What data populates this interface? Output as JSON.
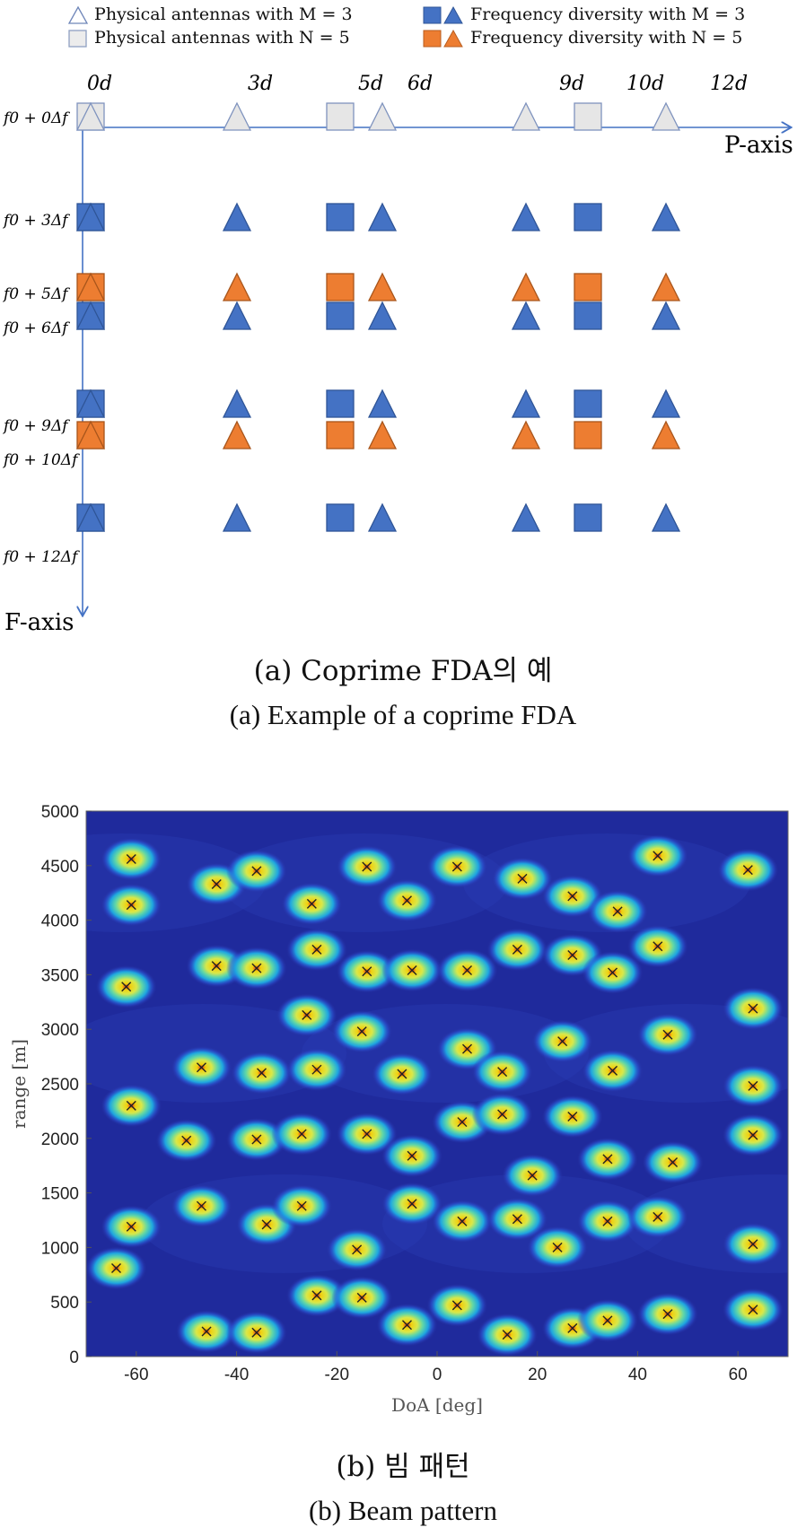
{
  "figure_a": {
    "legend": [
      {
        "label": "Physical antennas with M = 3",
        "marker": "triangle-outline"
      },
      {
        "label": "Physical antennas with N = 5",
        "marker": "square-outline"
      },
      {
        "label": "Frequency diversity with M = 3",
        "marker": "square-triangle-blue"
      },
      {
        "label": "Frequency diversity with N = 5",
        "marker": "square-triangle-orange"
      }
    ],
    "p_axis_label": "P-axis",
    "f_axis_label": "F-axis",
    "position_labels": [
      "0d",
      "3d",
      "5d",
      "6d",
      "9d",
      "10d",
      "12d"
    ],
    "frequency_labels": [
      "f0 + 0Δf",
      "f0 + 3Δf",
      "f0 + 5Δf",
      "f0 + 6Δf",
      "f0 + 9Δf",
      "f0 + 10Δf",
      "f0 + 12Δf"
    ],
    "caption_korean": "(a) Coprime FDA의 예",
    "caption_english": "(a) Example of a coprime FDA",
    "colors": {
      "blue": "#4472c4",
      "orange": "#ed7d31",
      "gray_fill": "#e6e6e6",
      "axis": "#4472c4"
    }
  },
  "chart_data": {
    "type": "heatmap",
    "xlabel": "DoA [deg]",
    "ylabel": "range [m]",
    "xlim": [
      -70,
      70
    ],
    "ylim": [
      0,
      5000
    ],
    "xticks": [
      -60,
      -40,
      -20,
      0,
      20,
      40,
      60
    ],
    "yticks": [
      0,
      500,
      1000,
      1500,
      2000,
      2500,
      3000,
      3500,
      4000,
      4500,
      5000
    ],
    "colormap": "parula",
    "targets": [
      [
        -61,
        4560
      ],
      [
        -61,
        4140
      ],
      [
        -44,
        4330
      ],
      [
        -36,
        4450
      ],
      [
        -25,
        4150
      ],
      [
        -14,
        4490
      ],
      [
        -6,
        4180
      ],
      [
        4,
        4490
      ],
      [
        17,
        4380
      ],
      [
        27,
        4220
      ],
      [
        36,
        4080
      ],
      [
        44,
        4590
      ],
      [
        62,
        4460
      ],
      [
        -44,
        3580
      ],
      [
        -36,
        3560
      ],
      [
        -24,
        3730
      ],
      [
        -14,
        3530
      ],
      [
        -5,
        3540
      ],
      [
        6,
        3540
      ],
      [
        16,
        3730
      ],
      [
        27,
        3680
      ],
      [
        35,
        3520
      ],
      [
        44,
        3760
      ],
      [
        -62,
        3390
      ],
      [
        -26,
        3130
      ],
      [
        -15,
        2980
      ],
      [
        63,
        3190
      ],
      [
        -47,
        2650
      ],
      [
        -35,
        2600
      ],
      [
        -24,
        2630
      ],
      [
        -7,
        2590
      ],
      [
        6,
        2820
      ],
      [
        13,
        2610
      ],
      [
        25,
        2890
      ],
      [
        35,
        2620
      ],
      [
        46,
        2950
      ],
      [
        63,
        2480
      ],
      [
        -61,
        2300
      ],
      [
        -50,
        1980
      ],
      [
        -36,
        1990
      ],
      [
        -27,
        2040
      ],
      [
        -14,
        2040
      ],
      [
        5,
        2150
      ],
      [
        13,
        2220
      ],
      [
        27,
        2200
      ],
      [
        34,
        1810
      ],
      [
        47,
        1780
      ],
      [
        63,
        2030
      ],
      [
        -5,
        1840
      ],
      [
        19,
        1660
      ],
      [
        -61,
        1190
      ],
      [
        -47,
        1380
      ],
      [
        -34,
        1210
      ],
      [
        -27,
        1380
      ],
      [
        -5,
        1400
      ],
      [
        5,
        1240
      ],
      [
        16,
        1260
      ],
      [
        24,
        1000
      ],
      [
        34,
        1240
      ],
      [
        44,
        1280
      ],
      [
        63,
        1030
      ],
      [
        -64,
        810
      ],
      [
        -16,
        980
      ],
      [
        -24,
        560
      ],
      [
        -15,
        540
      ],
      [
        -6,
        290
      ],
      [
        4,
        470
      ],
      [
        14,
        200
      ],
      [
        27,
        260
      ],
      [
        34,
        330
      ],
      [
        46,
        390
      ],
      [
        63,
        430
      ],
      [
        -46,
        230
      ],
      [
        -36,
        220
      ]
    ]
  },
  "figure_b": {
    "caption_korean": "(b) 빔 패턴",
    "caption_english": "(b) Beam pattern"
  }
}
